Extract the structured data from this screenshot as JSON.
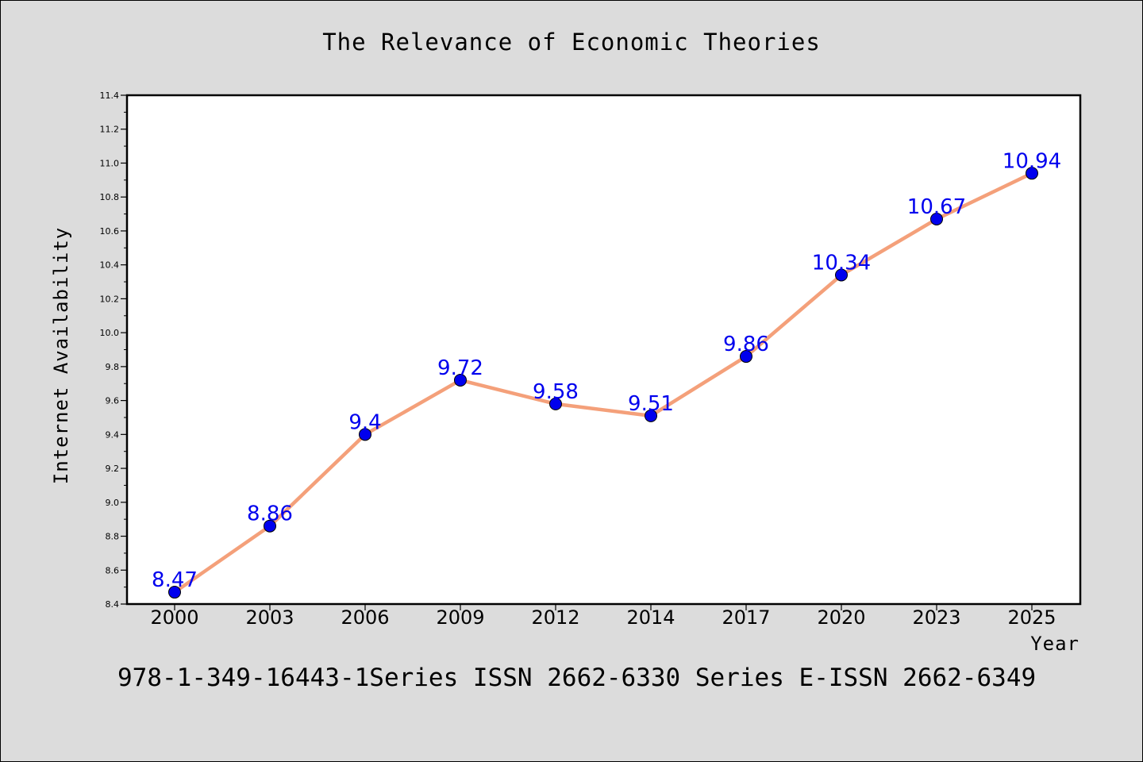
{
  "chart_data": {
    "type": "line",
    "title": "The Relevance of Economic Theories",
    "xlabel": "Year",
    "ylabel": "Internet Availability",
    "x": [
      "2000",
      "2003",
      "2006",
      "2009",
      "2012",
      "2014",
      "2017",
      "2020",
      "2023",
      "2025"
    ],
    "series": [
      {
        "values": [
          8.47,
          8.86,
          9.4,
          9.72,
          9.58,
          9.51,
          9.86,
          10.34,
          10.67,
          10.94
        ],
        "labels": [
          "8.47",
          "8.86",
          "9.4",
          "9.72",
          "9.58",
          "9.51",
          "9.86",
          "10.34",
          "10.67",
          "10.94"
        ]
      }
    ],
    "ylim": [
      8.4,
      11.4
    ],
    "yticks": [
      "8.4",
      "8.6",
      "8.8",
      "9.0",
      "9.2",
      "9.4",
      "9.6",
      "9.8",
      "10.0",
      "10.2",
      "10.4",
      "10.6",
      "10.8",
      "11.0",
      "11.2",
      "11.4"
    ],
    "grid": false,
    "line_color": "#f4a07a",
    "marker_color": "#0000ee",
    "label_color": "#0000ee"
  },
  "footer": {
    "text": "978-1-349-16443-1Series ISSN 2662-6330 Series E-ISSN 2662-6349"
  }
}
